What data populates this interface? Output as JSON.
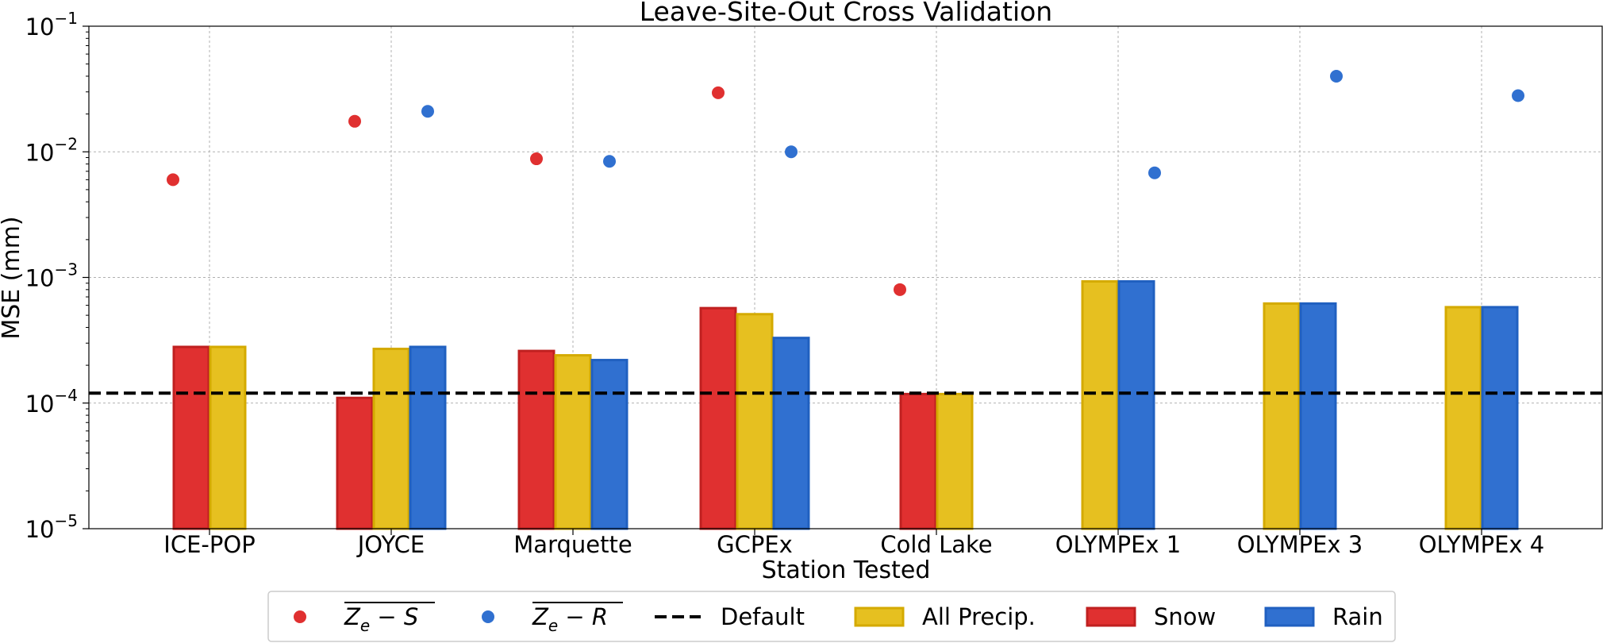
{
  "chart_data": {
    "type": "bar",
    "title": "Leave-Site-Out Cross Validation",
    "xlabel": "Station Tested",
    "ylabel": "MSE (mm)",
    "yscale": "log",
    "ylim": [
      1e-05,
      0.1
    ],
    "yticks": [
      {
        "value": 1e-05,
        "base": "10",
        "exp": "−5"
      },
      {
        "value": 0.0001,
        "base": "10",
        "exp": "−4"
      },
      {
        "value": 0.001,
        "base": "10",
        "exp": "−3"
      },
      {
        "value": 0.01,
        "base": "10",
        "exp": "−2"
      },
      {
        "value": 0.1,
        "base": "10",
        "exp": "−1"
      }
    ],
    "grid": true,
    "legend_position": "bottom-center",
    "categories": [
      "ICE-POP",
      "JOYCE",
      "Marquette",
      "GCPEx",
      "Cold Lake",
      "OLYMPEx 1",
      "OLYMPEx 3",
      "OLYMPEx 4"
    ],
    "series": [
      {
        "name": "Snow",
        "kind": "bar",
        "color": "#e03030",
        "values": [
          0.00028,
          0.00011,
          0.00026,
          0.00057,
          0.000118,
          null,
          null,
          null
        ]
      },
      {
        "name": "All Precip.",
        "kind": "bar",
        "color": "#e6c020",
        "values": [
          0.00028,
          0.00027,
          0.00024,
          0.00051,
          0.000118,
          0.00093,
          0.00062,
          0.00058
        ]
      },
      {
        "name": "Rain",
        "kind": "bar",
        "color": "#3070d0",
        "values": [
          null,
          0.00028,
          0.00022,
          0.00033,
          null,
          0.00093,
          0.00062,
          0.00058
        ]
      },
      {
        "name": "Z_e − S",
        "kind": "scatter",
        "color": "#e03030",
        "values": [
          0.006,
          0.0175,
          0.0088,
          0.0295,
          0.0008,
          null,
          null,
          null
        ]
      },
      {
        "name": "Z_e − R",
        "kind": "scatter",
        "color": "#3070d0",
        "values": [
          null,
          0.021,
          0.0084,
          0.01,
          null,
          0.0068,
          0.04,
          0.028
        ]
      }
    ],
    "reference_line": {
      "name": "Default",
      "value": 0.00012,
      "style": "dashed",
      "color": "#000000"
    },
    "legend": [
      {
        "label_main": "Z",
        "label_sub": "e",
        "label_rest": " − S",
        "overline": true,
        "marker": "dot",
        "color": "#e03030"
      },
      {
        "label_main": "Z",
        "label_sub": "e",
        "label_rest": " − R",
        "overline": true,
        "marker": "dot",
        "color": "#3070d0"
      },
      {
        "label": "Default",
        "marker": "dash",
        "color": "#000000"
      },
      {
        "label": "All Precip.",
        "marker": "box",
        "color": "#e6c020"
      },
      {
        "label": "Snow",
        "marker": "box",
        "color": "#e03030"
      },
      {
        "label": "Rain",
        "marker": "box",
        "color": "#3070d0"
      }
    ]
  }
}
